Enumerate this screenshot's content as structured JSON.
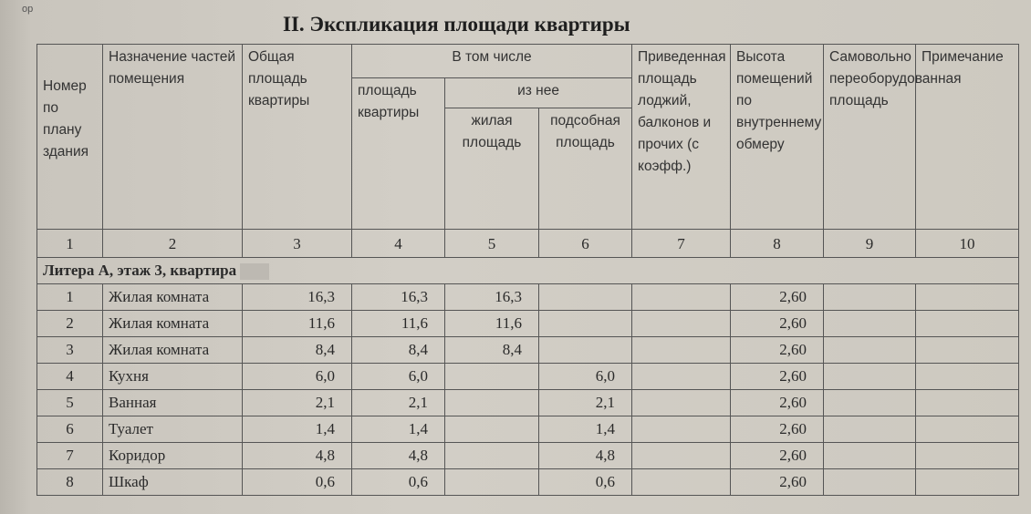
{
  "corner_text": "ор",
  "title": "II. Экспликация площади квартиры",
  "headers": {
    "col1": "Номер по плану здания",
    "col2": "Назначение частей помещения",
    "col3": "Общая площадь квартиры",
    "group": "В том числе",
    "col4": "площадь квартиры",
    "subgroup": "из нее",
    "col5": "жилая площадь",
    "col6": "подсобная площадь",
    "col7": "Приведенная площадь лоджий, балконов и прочих (с коэфф.)",
    "col8": "Высота помещений по внутреннему обмеру",
    "col9": "Самовольно переоборудованная площадь",
    "col10": "Примечание"
  },
  "column_numbers": [
    "1",
    "2",
    "3",
    "4",
    "5",
    "6",
    "7",
    "8",
    "9",
    "10"
  ],
  "section": "Литера А, этаж 3, квартира",
  "rows": [
    {
      "n": "1",
      "name": "Жилая комната",
      "total": "16,3",
      "area": "16,3",
      "living": "16,3",
      "aux": "",
      "loggia": "",
      "height": "2,60"
    },
    {
      "n": "2",
      "name": "Жилая комната",
      "total": "11,6",
      "area": "11,6",
      "living": "11,6",
      "aux": "",
      "loggia": "",
      "height": "2,60"
    },
    {
      "n": "3",
      "name": "Жилая комната",
      "total": "8,4",
      "area": "8,4",
      "living": "8,4",
      "aux": "",
      "loggia": "",
      "height": "2,60"
    },
    {
      "n": "4",
      "name": "Кухня",
      "total": "6,0",
      "area": "6,0",
      "living": "",
      "aux": "6,0",
      "loggia": "",
      "height": "2,60"
    },
    {
      "n": "5",
      "name": "Ванная",
      "total": "2,1",
      "area": "2,1",
      "living": "",
      "aux": "2,1",
      "loggia": "",
      "height": "2,60"
    },
    {
      "n": "6",
      "name": "Туалет",
      "total": "1,4",
      "area": "1,4",
      "living": "",
      "aux": "1,4",
      "loggia": "",
      "height": "2,60"
    },
    {
      "n": "7",
      "name": "Коридор",
      "total": "4,8",
      "area": "4,8",
      "living": "",
      "aux": "4,8",
      "loggia": "",
      "height": "2,60"
    },
    {
      "n": "8",
      "name": "Шкаф",
      "total": "0,6",
      "area": "0,6",
      "living": "",
      "aux": "0,6",
      "loggia": "",
      "height": "2,60"
    }
  ]
}
